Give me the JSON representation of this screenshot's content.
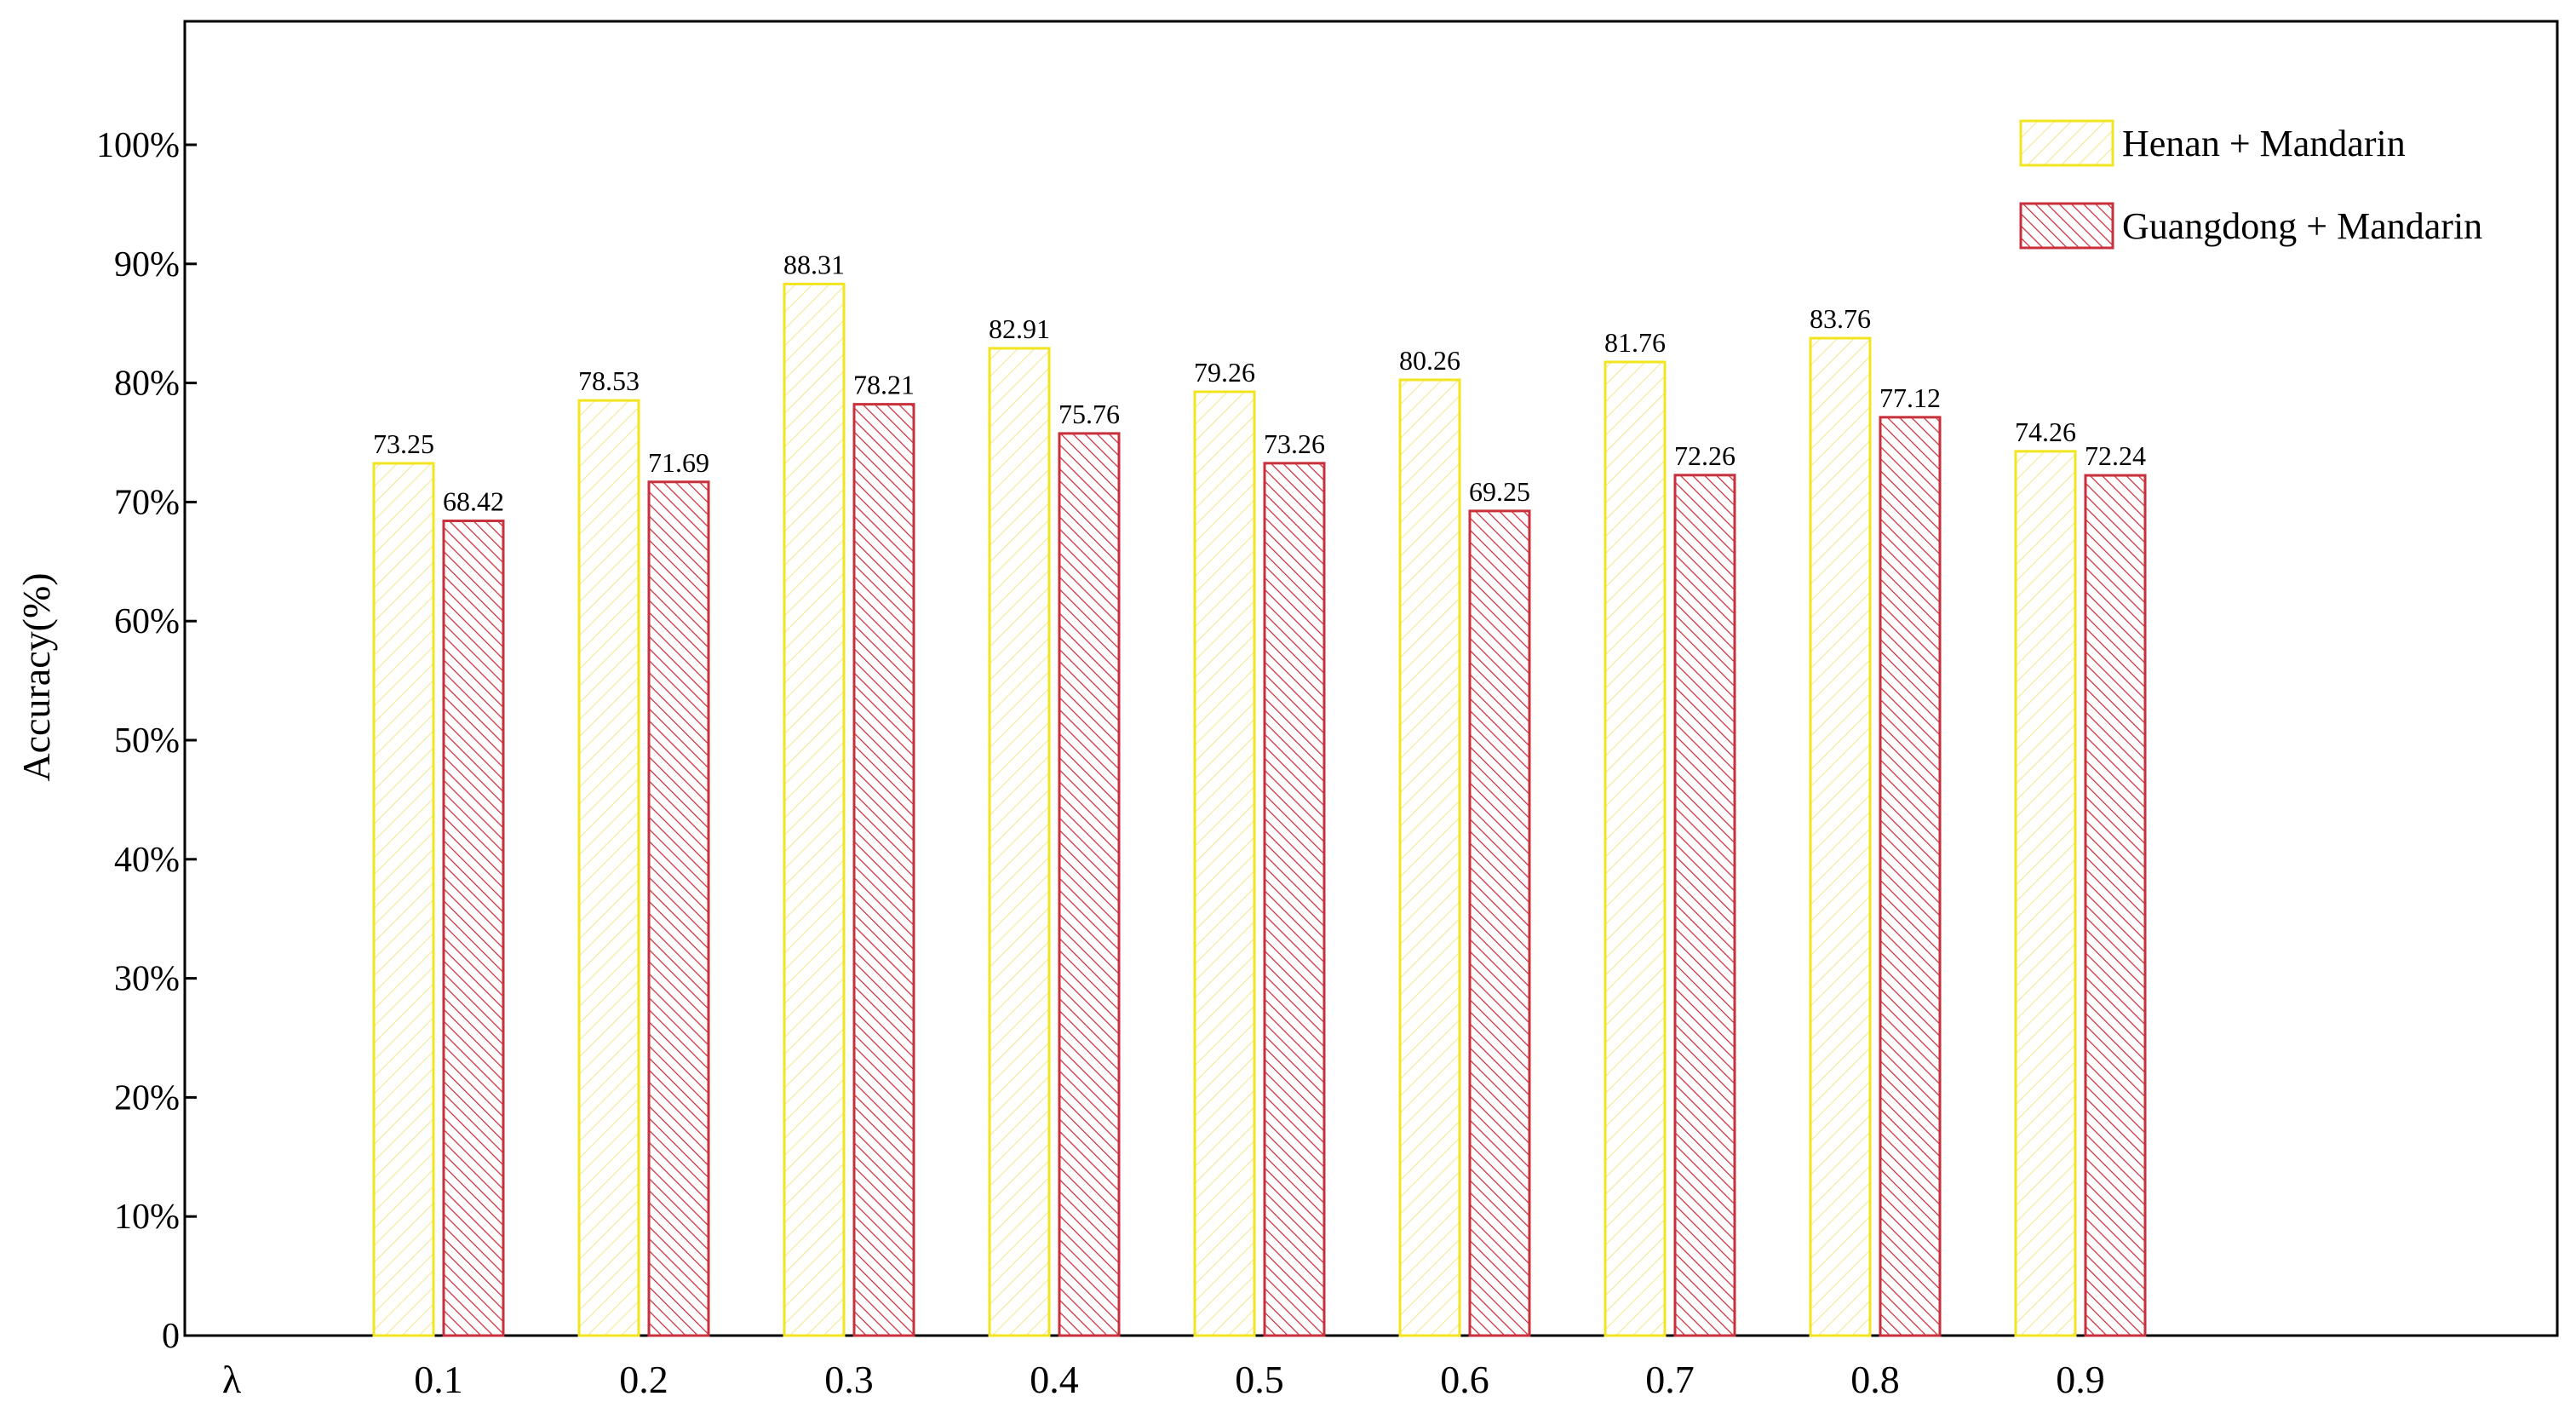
{
  "chart_data": {
    "type": "bar",
    "ylabel": "Accuracy(%)",
    "x_axis_symbol": "λ",
    "categories": [
      "0.1",
      "0.2",
      "0.3",
      "0.4",
      "0.5",
      "0.6",
      "0.7",
      "0.8",
      "0.9"
    ],
    "ylim": [
      0,
      110
    ],
    "yticks": [
      {
        "value": 0,
        "label": "0"
      },
      {
        "value": 10,
        "label": "10%"
      },
      {
        "value": 20,
        "label": "20%"
      },
      {
        "value": 30,
        "label": "30%"
      },
      {
        "value": 40,
        "label": "40%"
      },
      {
        "value": 50,
        "label": "50%"
      },
      {
        "value": 60,
        "label": "60%"
      },
      {
        "value": 70,
        "label": "70%"
      },
      {
        "value": 80,
        "label": "80%"
      },
      {
        "value": 90,
        "label": "90%"
      },
      {
        "value": 100,
        "label": "100%"
      }
    ],
    "series": [
      {
        "name": "Henan + Mandarin",
        "color": "#f2e41f",
        "hatch": "sparse-diagonal",
        "values": [
          73.25,
          78.53,
          88.31,
          82.91,
          79.26,
          80.26,
          81.76,
          83.76,
          74.26
        ],
        "labels": [
          "73.25",
          "78.53",
          "88.31",
          "82.91",
          "79.26",
          "80.26",
          "81.76",
          "83.76",
          "74.26"
        ]
      },
      {
        "name": "Guangdong + Mandarin",
        "color": "#c8303c",
        "hatch": "dense-diagonal",
        "values": [
          68.42,
          71.69,
          78.21,
          75.76,
          73.26,
          69.25,
          72.26,
          77.12,
          72.24
        ],
        "labels": [
          "68.42",
          "71.69",
          "78.21",
          "75.76",
          "73.26",
          "69.25",
          "72.26",
          "77.12",
          "72.24"
        ]
      }
    ],
    "legend_position": "top-right",
    "grid": false
  }
}
